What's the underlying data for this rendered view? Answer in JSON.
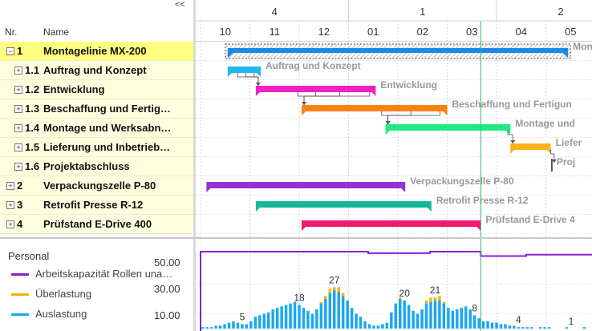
{
  "header": {
    "collapse_label": "<<",
    "col_nr": "Nr.",
    "col_name": "Name",
    "quarters": [
      "4",
      "1",
      "2"
    ],
    "months": [
      "10",
      "11",
      "12",
      "01",
      "02",
      "03",
      "04",
      "05"
    ]
  },
  "tasks": [
    {
      "nr": "1",
      "name": "Montagelinie MX-200",
      "bar_label": "Mont",
      "level": 0,
      "expanded": true,
      "selected": true,
      "type": "summary",
      "color": "#1e88e5",
      "start_month": 0.55,
      "end_month": 7.45
    },
    {
      "nr": "1.1",
      "name": "Auftrag und Konzept",
      "bar_label": "Auftrag und Konzept",
      "level": 1,
      "expanded": false,
      "selected": false,
      "type": "task",
      "color": "#20b8f0",
      "start_month": 0.55,
      "end_month": 1.22
    },
    {
      "nr": "1.2",
      "name": "Entwicklung",
      "bar_label": "Entwicklung",
      "level": 1,
      "expanded": false,
      "selected": false,
      "type": "task",
      "color": "#f020c8",
      "start_month": 1.12,
      "end_month": 3.55
    },
    {
      "nr": "1.3",
      "name": "Beschaffung und Fertig…",
      "bar_label": "Beschaffung und Fertigun",
      "level": 1,
      "expanded": false,
      "selected": false,
      "type": "task",
      "color": "#fb8110",
      "start_month": 2.05,
      "end_month": 5.0
    },
    {
      "nr": "1.4",
      "name": "Montage und Werksabn…",
      "bar_label": "Montage und",
      "level": 1,
      "expanded": false,
      "selected": false,
      "type": "task",
      "color": "#22e880",
      "start_month": 3.75,
      "end_month": 6.28
    },
    {
      "nr": "1.5",
      "name": "Lieferung und Inbetrieb…",
      "bar_label": "Liefer",
      "level": 1,
      "expanded": false,
      "selected": false,
      "type": "task",
      "color": "#ffb31a",
      "start_month": 6.28,
      "end_month": 7.1
    },
    {
      "nr": "1.6",
      "name": "Projektabschluss",
      "bar_label": "Proj",
      "level": 1,
      "expanded": false,
      "selected": false,
      "type": "milestone",
      "color": "#555555",
      "start_month": 7.12,
      "end_month": 7.12
    },
    {
      "nr": "2",
      "name": "Verpackungszelle P-80",
      "bar_label": "Verpackungszelle P-80",
      "level": 0,
      "expanded": false,
      "selected": false,
      "type": "task",
      "color": "#9333d8",
      "start_month": 0.12,
      "end_month": 4.15
    },
    {
      "nr": "3",
      "name": "Retrofit Presse R-12",
      "bar_label": "Retrofit Presse R-12",
      "level": 0,
      "expanded": false,
      "selected": false,
      "type": "task",
      "color": "#13b89a",
      "start_month": 1.12,
      "end_month": 4.68
    },
    {
      "nr": "4",
      "name": "Prüfstand E-Drive 400",
      "bar_label": "Prüfstand E-Drive 4",
      "level": 0,
      "expanded": false,
      "selected": false,
      "type": "task",
      "color": "#f0186e",
      "start_month": 2.05,
      "end_month": 5.68
    }
  ],
  "today_month": 5.68,
  "resource_panel": {
    "title": "Personal",
    "legend": [
      {
        "label": "Arbeitskapazität Rollen una…",
        "color": "#8a1fd8"
      },
      {
        "label": "Überlastung",
        "color": "#ffb100"
      },
      {
        "label": "Auslastung",
        "color": "#1aa8ee"
      }
    ],
    "yticks": [
      "50.00",
      "30.00",
      "10.00"
    ],
    "peak_labels": [
      "5",
      "18",
      "27",
      "20",
      "21",
      "8",
      "4",
      "1"
    ]
  },
  "chart_data": {
    "type": "bar",
    "ylim": [
      0,
      55
    ],
    "capacity": [
      {
        "from_month": 0.0,
        "to_month": 3.4,
        "value": 52
      },
      {
        "from_month": 3.4,
        "to_month": 4.65,
        "value": 51
      },
      {
        "from_month": 4.65,
        "to_month": 5.68,
        "value": 52
      },
      {
        "from_month": 5.68,
        "to_month": 6.6,
        "value": 49
      },
      {
        "from_month": 6.6,
        "to_month": 8.0,
        "value": 50
      }
    ],
    "utilization": [
      1,
      1,
      1,
      2,
      2,
      3,
      4,
      5,
      4,
      3,
      3,
      5,
      8,
      9,
      10,
      11,
      13,
      14,
      15,
      16,
      17,
      18,
      16,
      14,
      12,
      10,
      13,
      17,
      20,
      24,
      26,
      25,
      22,
      19,
      14,
      10,
      8,
      5,
      3,
      2,
      2,
      3,
      4,
      11,
      17,
      20,
      19,
      16,
      12,
      10,
      13,
      17,
      18,
      19,
      19,
      17,
      14,
      12,
      13,
      14,
      15,
      13,
      9,
      7,
      5,
      5,
      4,
      4,
      3,
      3,
      2,
      2,
      1,
      1,
      1,
      1,
      0,
      1,
      1,
      1,
      0,
      0,
      0,
      1,
      0,
      0,
      0,
      1,
      0,
      0
    ],
    "overload": [
      0,
      0,
      0,
      0,
      0,
      0,
      0,
      0,
      0,
      0,
      0,
      0,
      0,
      0,
      0,
      0,
      0,
      0,
      0,
      0,
      0,
      0,
      0,
      0,
      0,
      0,
      0,
      1,
      2,
      3,
      2,
      3,
      2,
      0,
      0,
      0,
      0,
      0,
      0,
      0,
      0,
      0,
      0,
      0,
      0,
      1,
      0,
      0,
      0,
      0,
      0,
      2,
      3,
      2,
      3,
      1,
      0,
      0,
      0,
      0,
      0,
      0,
      0,
      0,
      0,
      0,
      0,
      0,
      0,
      0,
      0,
      0,
      0,
      0,
      0,
      0,
      0,
      0,
      0,
      0,
      0,
      0,
      0,
      0,
      0,
      0,
      0,
      0,
      0,
      0
    ]
  }
}
